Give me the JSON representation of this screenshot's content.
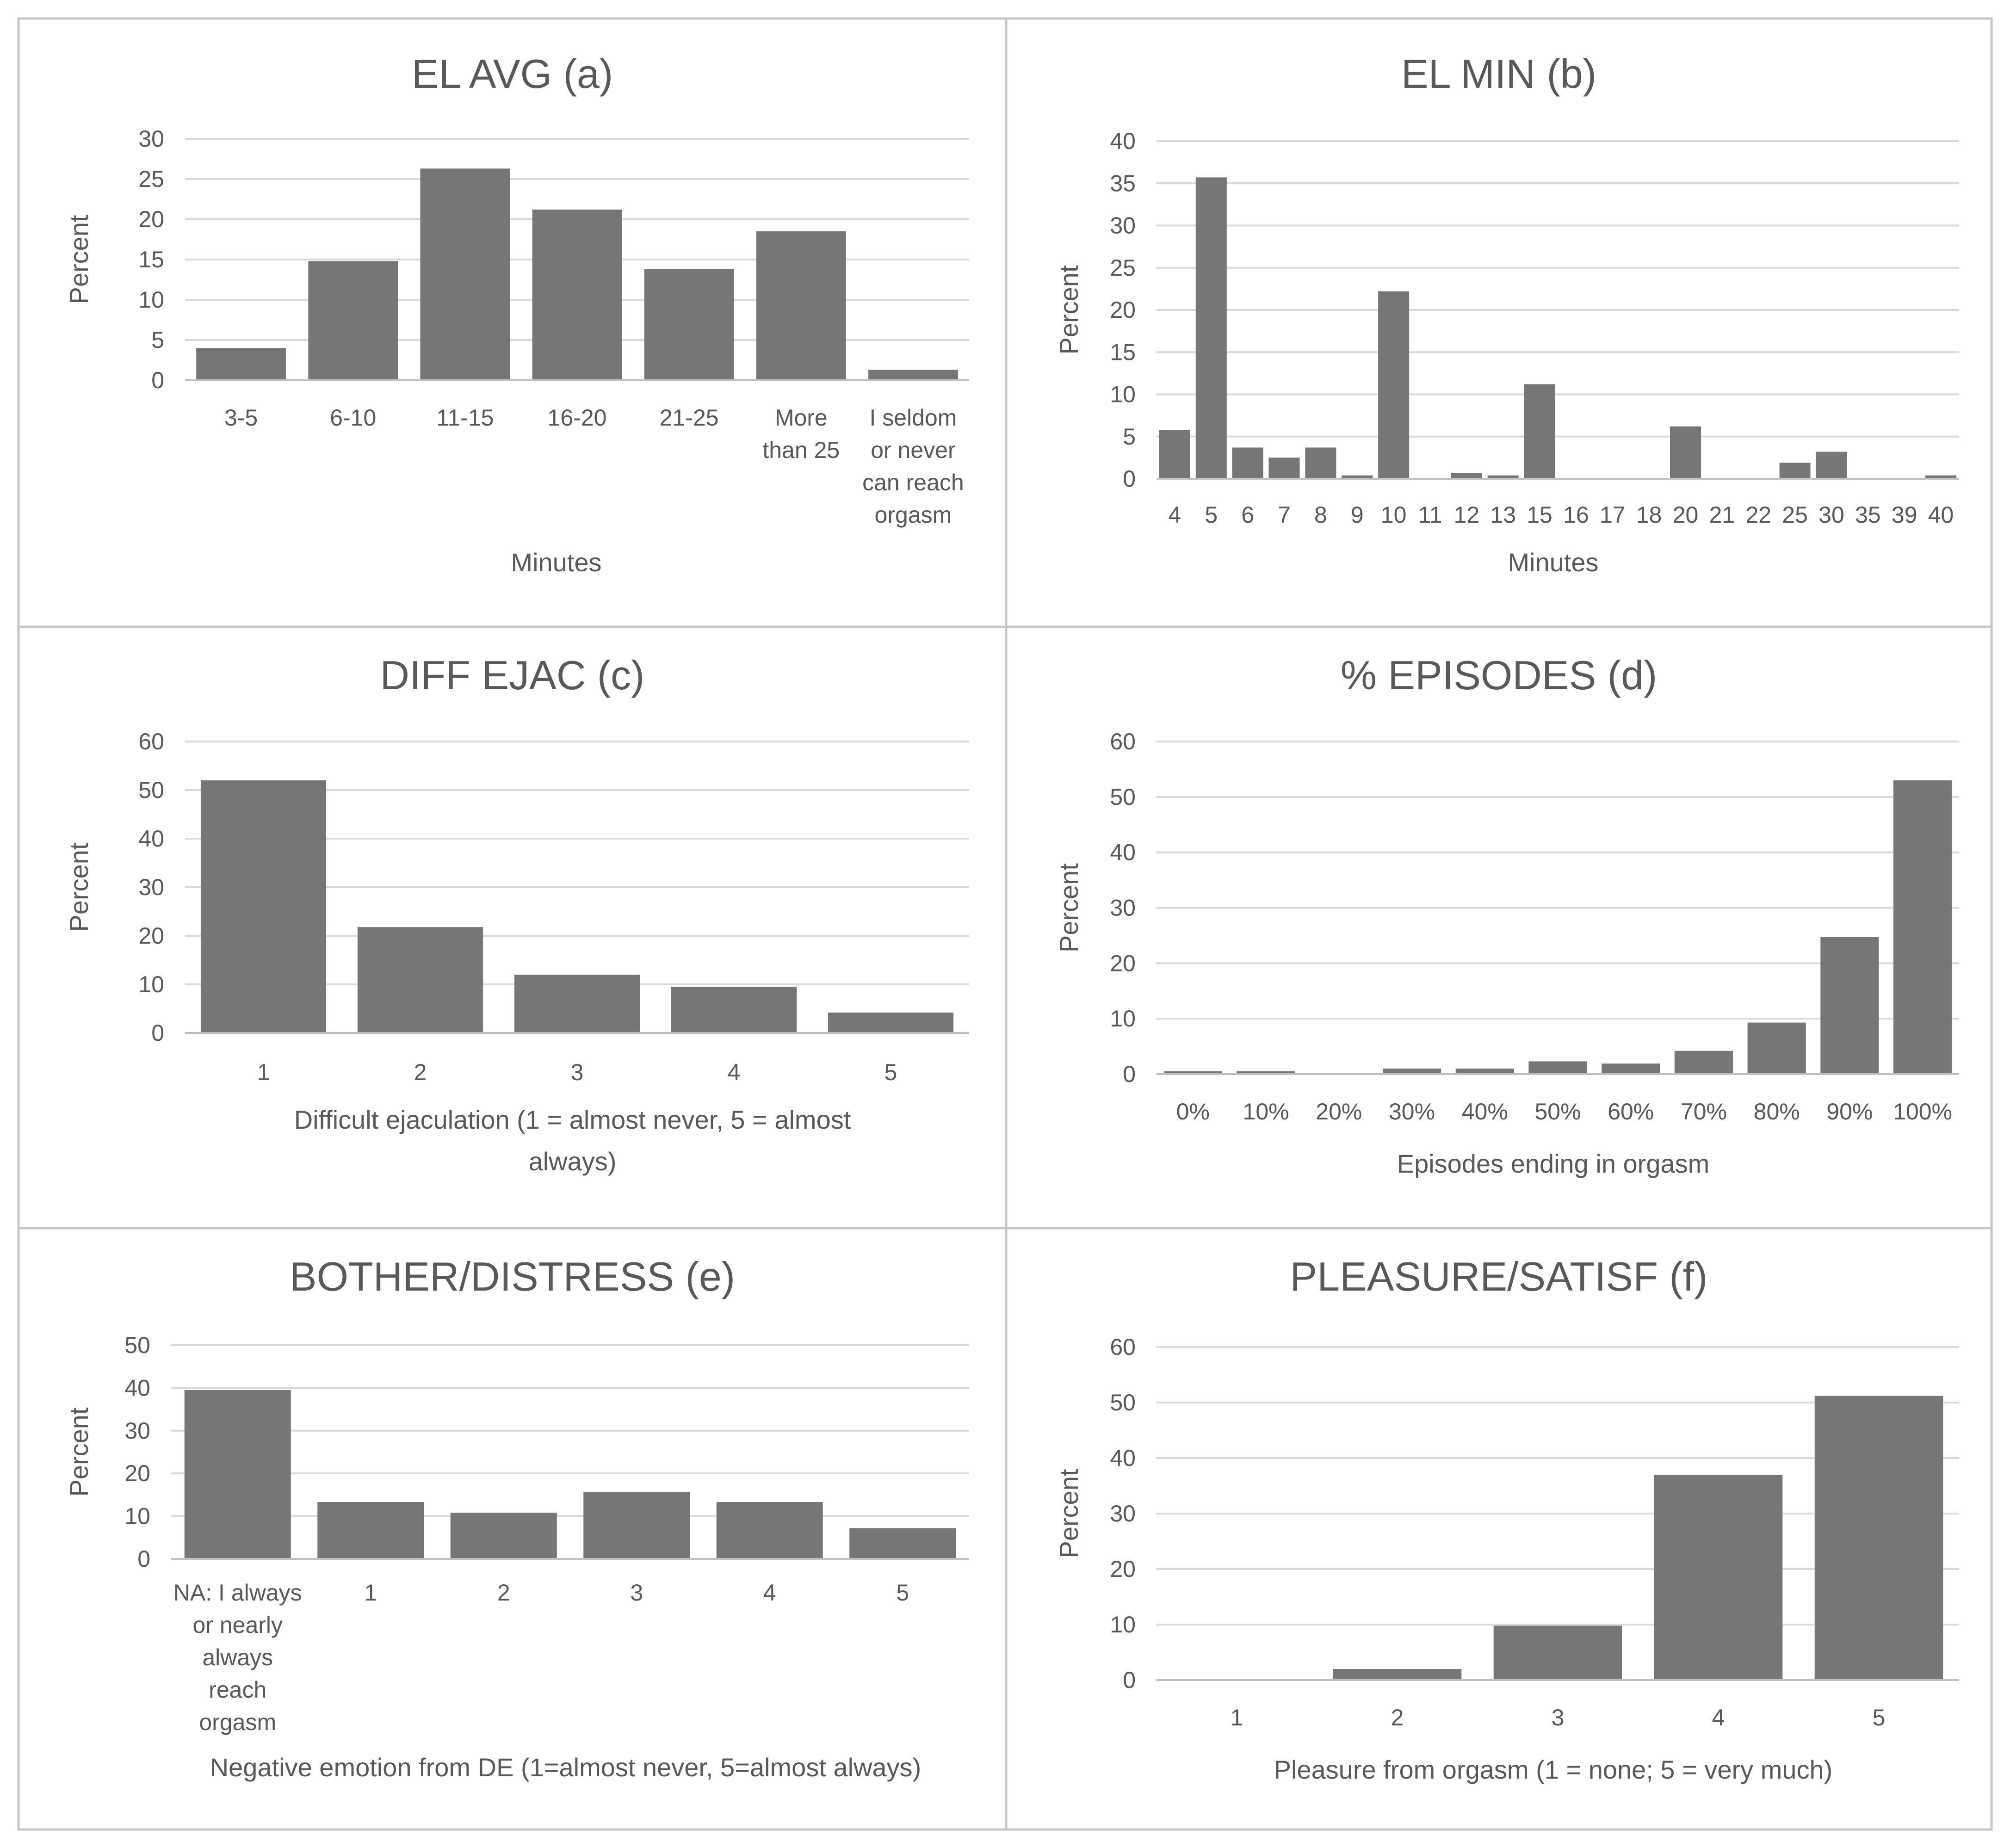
{
  "figure": {
    "bar_color": "#767676",
    "grid_color": "#d9d9d9",
    "text_color": "#595959",
    "border_color": "#c6c6c6"
  },
  "chart_data": [
    {
      "id": "a",
      "type": "bar",
      "title": "EL AVG (a)",
      "xlabel": "Minutes",
      "ylabel": "Percent",
      "ylim": [
        0,
        30
      ],
      "yticks": [
        "0",
        "5",
        "10",
        "15",
        "20",
        "25",
        "30"
      ],
      "grid": true,
      "categories": [
        "3-5",
        "6-10",
        "11-15",
        "16-20",
        "21-25",
        "More than 25",
        "I seldom or never can reach orgasm"
      ],
      "category_lines": [
        [
          "3-5"
        ],
        [
          "6-10"
        ],
        [
          "11-15"
        ],
        [
          "16-20"
        ],
        [
          "21-25"
        ],
        [
          "More",
          "than 25"
        ],
        [
          "I seldom",
          "or never",
          "can reach",
          "orgasm"
        ]
      ],
      "values": [
        4.0,
        14.8,
        26.3,
        21.2,
        13.8,
        18.5,
        1.3
      ]
    },
    {
      "id": "b",
      "type": "bar",
      "title": "EL MIN (b)",
      "xlabel": "Minutes",
      "ylabel": "Percent",
      "ylim": [
        0,
        40
      ],
      "yticks": [
        "0",
        "5",
        "10",
        "15",
        "20",
        "25",
        "30",
        "35",
        "40"
      ],
      "grid": true,
      "categories": [
        "4",
        "5",
        "6",
        "7",
        "8",
        "9",
        "10",
        "11",
        "12",
        "13",
        "15",
        "16",
        "17",
        "18",
        "20",
        "21",
        "22",
        "25",
        "30",
        "35",
        "39",
        "40"
      ],
      "values": [
        5.8,
        35.7,
        3.7,
        2.5,
        3.7,
        0.4,
        22.2,
        0,
        0.7,
        0.4,
        11.2,
        0,
        0,
        0,
        6.2,
        0,
        0,
        1.9,
        3.2,
        0,
        0,
        0.4
      ]
    },
    {
      "id": "c",
      "type": "bar",
      "title": "DIFF EJAC (c)",
      "xlabel": "Difficult ejaculation (1 = almost never, 5 = almost always)",
      "xlabel_lines": [
        "Difficult ejaculation (1 = almost never, 5 = almost",
        "always)"
      ],
      "ylabel": "Percent",
      "ylim": [
        0,
        60
      ],
      "yticks": [
        "0",
        "10",
        "20",
        "30",
        "40",
        "50",
        "60"
      ],
      "grid": true,
      "categories": [
        "1",
        "2",
        "3",
        "4",
        "5"
      ],
      "values": [
        52.0,
        21.8,
        12.0,
        9.5,
        4.2
      ]
    },
    {
      "id": "d",
      "type": "bar",
      "title": "% EPISODES (d)",
      "xlabel": "Episodes ending in orgasm",
      "ylabel": "Percent",
      "ylim": [
        0,
        60
      ],
      "yticks": [
        "0",
        "10",
        "20",
        "30",
        "40",
        "50",
        "60"
      ],
      "grid": true,
      "categories": [
        "0%",
        "10%",
        "20%",
        "30%",
        "40%",
        "50%",
        "60%",
        "70%",
        "80%",
        "90%",
        "100%"
      ],
      "values": [
        0.5,
        0.5,
        0,
        1.0,
        1.0,
        2.3,
        1.9,
        4.2,
        9.3,
        24.7,
        53.0
      ]
    },
    {
      "id": "e",
      "type": "bar",
      "title": "BOTHER/DISTRESS (e)",
      "xlabel": "Negative emotion from DE (1=almost never, 5=almost always)",
      "ylabel": "Percent",
      "ylim": [
        0,
        50
      ],
      "yticks": [
        "0",
        "10",
        "20",
        "30",
        "40",
        "50"
      ],
      "grid": true,
      "categories": [
        "NA: I always or nearly always reach orgasm",
        "1",
        "2",
        "3",
        "4",
        "5"
      ],
      "category_lines": [
        [
          "NA: I always",
          "or nearly",
          "always",
          "reach",
          "orgasm"
        ],
        [
          "1"
        ],
        [
          "2"
        ],
        [
          "3"
        ],
        [
          "4"
        ],
        [
          "5"
        ]
      ],
      "values": [
        39.5,
        13.3,
        10.8,
        15.7,
        13.3,
        7.2
      ]
    },
    {
      "id": "f",
      "type": "bar",
      "title": "PLEASURE/SATISF (f)",
      "xlabel": "Pleasure from orgasm (1 = none; 5 = very much)",
      "ylabel": "Percent",
      "ylim": [
        0,
        60
      ],
      "yticks": [
        "0",
        "10",
        "20",
        "30",
        "40",
        "50",
        "60"
      ],
      "grid": true,
      "categories": [
        "1",
        "2",
        "3",
        "4",
        "5"
      ],
      "values": [
        0,
        2.0,
        9.8,
        37.0,
        51.2
      ]
    }
  ]
}
